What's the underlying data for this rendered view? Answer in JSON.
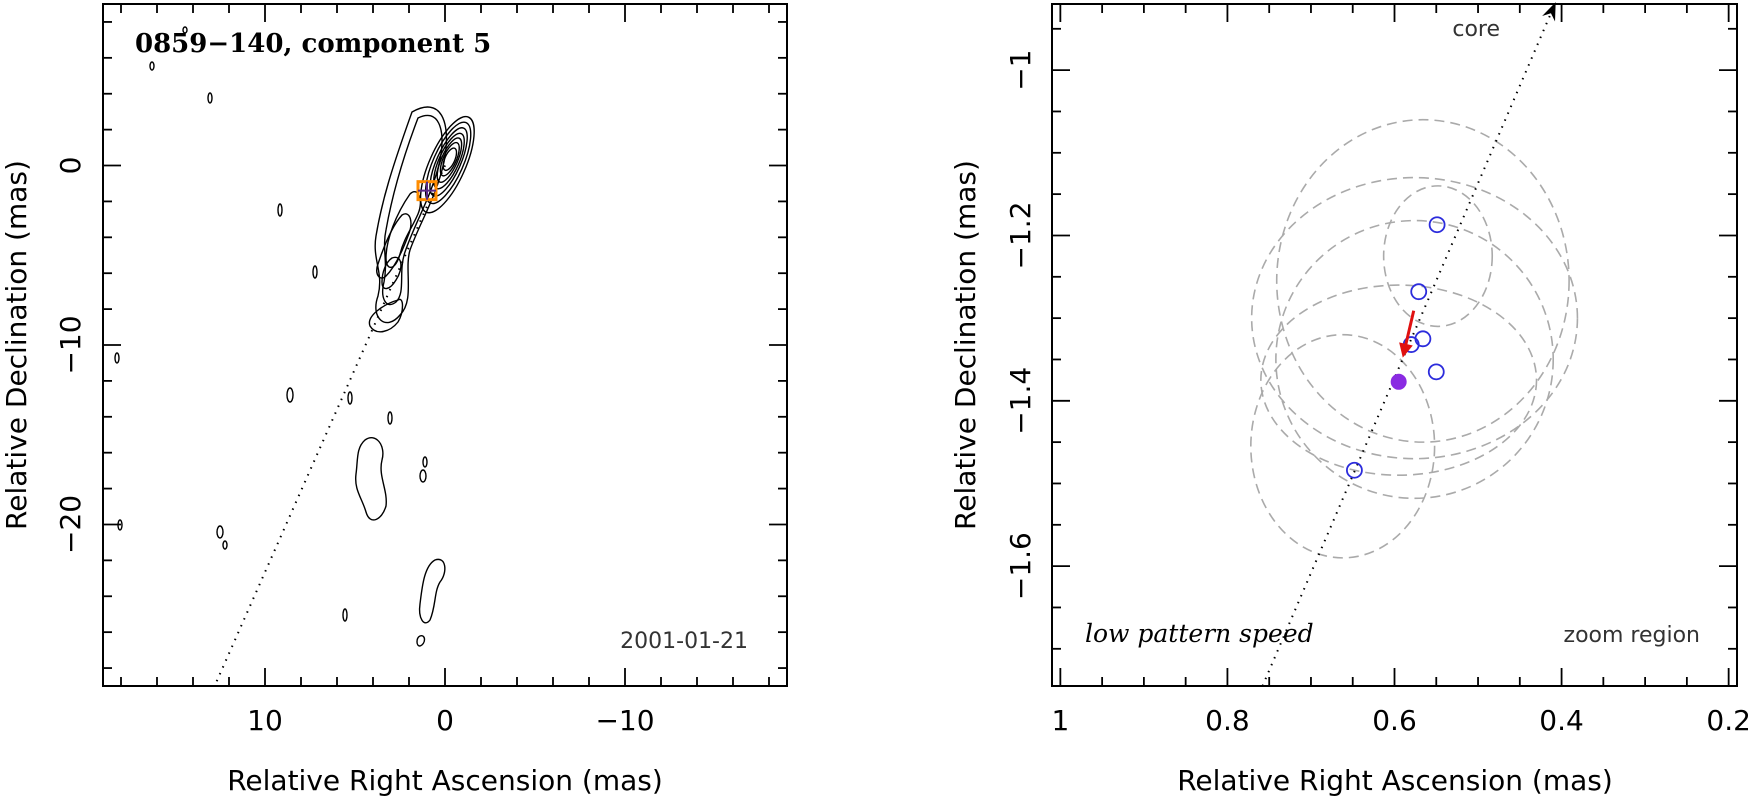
{
  "colors": {
    "obs_marker": "#2c2cdc",
    "current_marker": "#8a2be2",
    "motion_arrow": "#e01010",
    "zoom_box": "#ff8c00",
    "zoom_box_cross": "#5b2a86",
    "fit_ellipse": "#aaaaaa"
  },
  "chart_data": [
    {
      "type": "contour",
      "panel": "left",
      "title": "0859−140, component 5",
      "date_label": "2001-01-21",
      "xlabel": "Relative Right Ascension (mas)",
      "ylabel": "Relative Declination (mas)",
      "xlim": [
        19,
        -19
      ],
      "ylim": [
        -29,
        9
      ],
      "xticks": [
        10,
        0,
        -10
      ],
      "xtick_labels": [
        "10",
        "0",
        "−10"
      ],
      "yticks": [
        0,
        -10,
        -20
      ],
      "ytick_labels": [
        "0",
        "−10",
        "−20"
      ],
      "component_position": [
        1.0,
        -1.4
      ],
      "jet_axis": {
        "from": [
          0,
          0
        ],
        "to": [
          12.8,
          -29
        ]
      }
    },
    {
      "type": "scatter",
      "panel": "right",
      "annotation": "low pattern speed",
      "region_label": "zoom region",
      "core_label": "core",
      "xlabel": "Relative Right Ascension (mas)",
      "ylabel": "Relative Declination (mas)",
      "xlim": [
        1.01,
        0.19
      ],
      "ylim": [
        -1.745,
        -0.92
      ],
      "xticks": [
        1,
        0.8,
        0.6,
        0.4,
        0.2
      ],
      "xtick_labels": [
        "1",
        "0.8",
        "0.6",
        "0.4",
        "0.2"
      ],
      "yticks": [
        -1,
        -1.2,
        -1.4,
        -1.6
      ],
      "ytick_labels": [
        "−1",
        "−1.2",
        "−1.4",
        "−1.6"
      ],
      "observed_positions": [
        {
          "x": 0.549,
          "y": -1.187
        },
        {
          "x": 0.571,
          "y": -1.268
        },
        {
          "x": 0.566,
          "y": -1.325
        },
        {
          "x": 0.58,
          "y": -1.332
        },
        {
          "x": 0.55,
          "y": -1.365
        },
        {
          "x": 0.648,
          "y": -1.484
        }
      ],
      "current_position": {
        "x": 0.595,
        "y": -1.377
      },
      "motion_arrow": {
        "from": [
          0.577,
          -1.291
        ],
        "to": [
          0.589,
          -1.343
        ]
      },
      "jet_axis": {
        "from": [
          0.758,
          -1.745
        ],
        "to": [
          0.408,
          -0.92
        ]
      },
      "position_error_ellipses": [
        {
          "cx": 0.566,
          "cy": -1.255,
          "rx": 0.175,
          "ry": 0.195
        },
        {
          "cx": 0.576,
          "cy": -1.3,
          "rx": 0.195,
          "ry": 0.17
        },
        {
          "cx": 0.576,
          "cy": -1.35,
          "rx": 0.166,
          "ry": 0.168
        },
        {
          "cx": 0.548,
          "cy": -1.225,
          "rx": 0.065,
          "ry": 0.085
        },
        {
          "cx": 0.595,
          "cy": -1.375,
          "rx": 0.165,
          "ry": 0.115
        },
        {
          "cx": 0.662,
          "cy": -1.455,
          "rx": 0.11,
          "ry": 0.135
        }
      ]
    }
  ]
}
